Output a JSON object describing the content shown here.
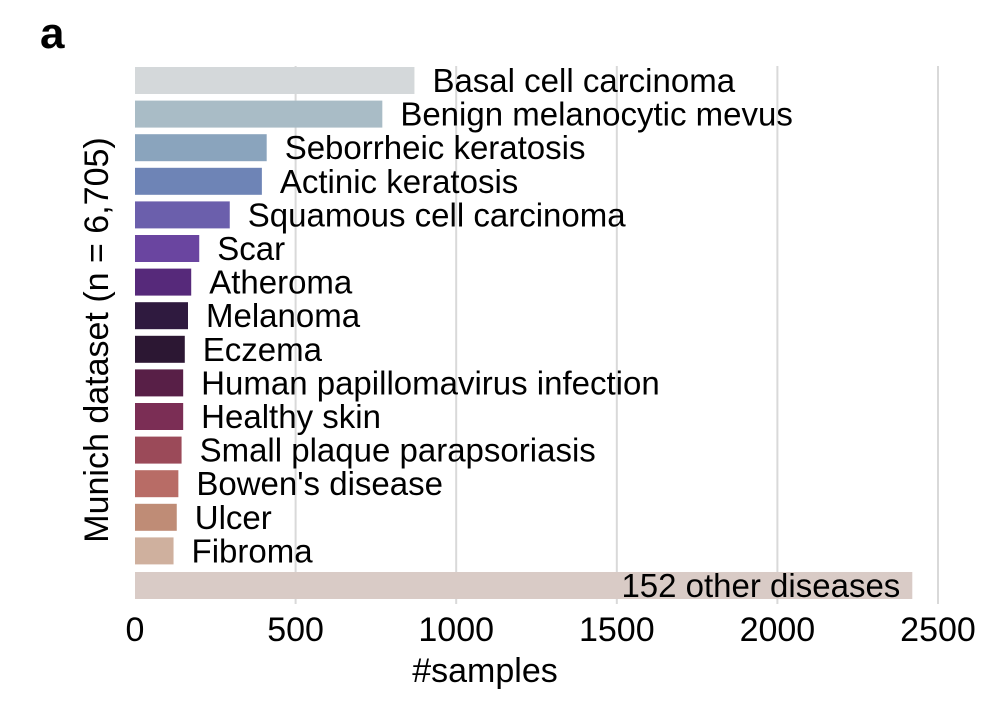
{
  "panel_letter": "a",
  "chart_data": {
    "type": "bar",
    "orientation": "horizontal",
    "ylabel": "Munich dataset (n = 6,705)",
    "xlabel": "#samples",
    "xlim": [
      0,
      2500
    ],
    "xticks": [
      0,
      500,
      1000,
      1500,
      2000,
      2500
    ],
    "grid": true,
    "categories": [
      "Basal cell carcinoma",
      "Benign melanocytic mevus",
      "Seborrheic keratosis",
      "Actinic keratosis",
      "Squamous cell carcinoma",
      "Scar",
      "Atheroma",
      "Melanoma",
      "Eczema",
      "Human papillomavirus infection",
      "Healthy skin",
      "Small plaque parapsoriasis",
      "Bowen's disease",
      "Ulcer",
      "Fibroma",
      "152 other diseases"
    ],
    "values": [
      870,
      770,
      410,
      395,
      295,
      200,
      175,
      165,
      155,
      150,
      150,
      145,
      135,
      130,
      120,
      2420
    ],
    "colors": [
      "#d4d8da",
      "#a9bcc6",
      "#8aa4bd",
      "#6e84b6",
      "#6b5fac",
      "#6a45a0",
      "#56297a",
      "#2f1a3f",
      "#2c1733",
      "#581f47",
      "#7b2e55",
      "#9b4a59",
      "#b86c66",
      "#bf8c76",
      "#cfb09e",
      "#d9cbc6"
    ]
  }
}
